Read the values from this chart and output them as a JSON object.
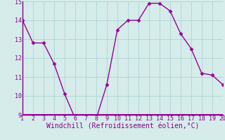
{
  "x": [
    1,
    2,
    3,
    4,
    5,
    6,
    7,
    8,
    9,
    10,
    11,
    12,
    13,
    14,
    15,
    16,
    17,
    18,
    19,
    20
  ],
  "y": [
    14.0,
    12.8,
    12.8,
    11.7,
    10.1,
    8.8,
    8.8,
    8.8,
    10.6,
    13.5,
    14.0,
    14.0,
    14.9,
    14.9,
    14.5,
    13.3,
    12.5,
    11.2,
    11.1,
    10.6
  ],
  "line_color": "#990099",
  "marker": "D",
  "markersize": 2.5,
  "linewidth": 1.0,
  "xlabel": "Windchill (Refroidissement éolien,°C)",
  "xlabel_fontsize": 7.0,
  "ylim": [
    9,
    15
  ],
  "xlim": [
    1,
    20
  ],
  "yticks": [
    9,
    10,
    11,
    12,
    13,
    14,
    15
  ],
  "xticks": [
    1,
    2,
    3,
    4,
    5,
    6,
    7,
    8,
    9,
    10,
    11,
    12,
    13,
    14,
    15,
    16,
    17,
    18,
    19,
    20
  ],
  "grid_color": "#add4d4",
  "bg_color": "#d5ecea",
  "tick_fontsize": 6.0,
  "tick_color": "#880088",
  "spine_color": "#880088",
  "bottom_line_color": "#990099"
}
